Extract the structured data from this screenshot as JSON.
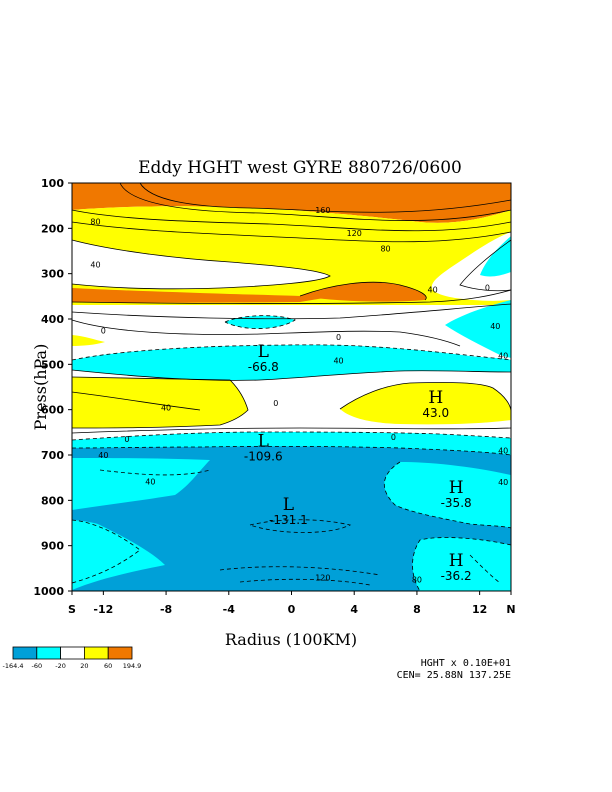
{
  "chart_data": {
    "type": "contour",
    "title": "Eddy HGHT west GYRE 880726/0600",
    "xlabel": "Radius (100KM)",
    "ylabel": "Press(hPa)",
    "x_ticks": [
      "S",
      "-12",
      "-8",
      "-4",
      "0",
      "4",
      "8",
      "12",
      "N"
    ],
    "x_tick_values": [
      -14,
      -12,
      -8,
      -4,
      0,
      4,
      8,
      12,
      14
    ],
    "y_ticks": [
      "100",
      "200",
      "300",
      "400",
      "500",
      "600",
      "700",
      "800",
      "900",
      "1000"
    ],
    "y_tick_values": [
      100,
      200,
      300,
      400,
      500,
      600,
      700,
      800,
      900,
      1000
    ],
    "xlim": [
      -14,
      14
    ],
    "ylim": [
      100,
      1000
    ],
    "y_inverted": true,
    "color_levels": {
      "edges": [
        "-164.4",
        "-60",
        "-20",
        "20",
        "60",
        "194.9"
      ],
      "colors": [
        "#00a0d8",
        "#00ffff",
        "#ffffff",
        "#ffff00",
        "#f07800"
      ]
    },
    "contour_labels": [
      {
        "text": "160",
        "x": 2,
        "p": 160
      },
      {
        "text": "120",
        "x": 4,
        "p": 210
      },
      {
        "text": "80",
        "x": 6,
        "p": 245
      },
      {
        "text": "80",
        "x": -12.5,
        "p": 185
      },
      {
        "text": "40",
        "x": -12.5,
        "p": 280
      },
      {
        "text": "40",
        "x": 9,
        "p": 335
      },
      {
        "text": "0",
        "x": 12.5,
        "p": 330
      },
      {
        "text": "0",
        "x": -12,
        "p": 425
      },
      {
        "text": "0",
        "x": 3,
        "p": 440
      },
      {
        "text": "40",
        "x": 13,
        "p": 415
      },
      {
        "text": "40",
        "x": 13.5,
        "p": 480
      },
      {
        "text": "40",
        "x": 3,
        "p": 492
      },
      {
        "text": "40",
        "x": -8,
        "p": 595
      },
      {
        "text": "0",
        "x": -1,
        "p": 585
      },
      {
        "text": "0",
        "x": 6.5,
        "p": 660
      },
      {
        "text": "0",
        "x": -10.5,
        "p": 665
      },
      {
        "text": "40",
        "x": -12,
        "p": 700
      },
      {
        "text": "40",
        "x": 13.5,
        "p": 690
      },
      {
        "text": "40",
        "x": -9,
        "p": 758
      },
      {
        "text": "40",
        "x": 13.5,
        "p": 760
      },
      {
        "text": "120",
        "x": 2,
        "p": 970
      },
      {
        "text": "80",
        "x": 8,
        "p": 975
      }
    ],
    "extrema": [
      {
        "letter": "L",
        "value": "-66.8",
        "x": -1.8,
        "p": 497
      },
      {
        "letter": "H",
        "value": "43.0",
        "x": 9.2,
        "p": 598
      },
      {
        "letter": "L",
        "value": "-109.6",
        "x": -1.8,
        "p": 695
      },
      {
        "letter": "H",
        "value": "-35.8",
        "x": 10.5,
        "p": 797
      },
      {
        "letter": "L",
        "value": "-131.1",
        "x": -0.2,
        "p": 835
      },
      {
        "letter": "H",
        "value": "-36.2",
        "x": 10.5,
        "p": 958
      }
    ],
    "footer": {
      "scale": "HGHT x  0.10E+01",
      "center": "CEN= 25.88N  137.25E"
    }
  }
}
